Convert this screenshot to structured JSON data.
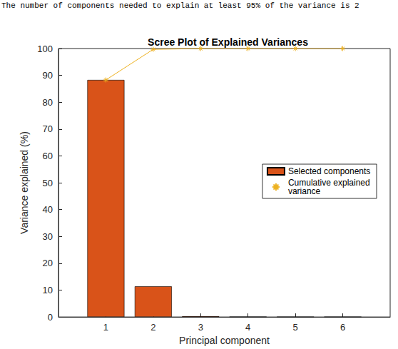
{
  "chart_data": {
    "type": "bar",
    "title": "Scree Plot of Explained Variances",
    "annotation": "The number of components needed to explain at least 95% of the variance is 2",
    "x_label": "Principal component",
    "y_label": "Variance explained (%)",
    "x": [
      1,
      2,
      3,
      4,
      5,
      6
    ],
    "series": [
      {
        "name": "Selected components",
        "type": "bar",
        "color": "#d95319",
        "values": [
          88.3,
          11.4,
          0.28,
          0.02,
          0,
          0
        ]
      },
      {
        "name": "Cumulative explained variance",
        "type": "line",
        "color": "#edb120",
        "marker": "star",
        "line_style": "solid",
        "values": [
          88.3,
          99.7,
          99.98,
          100,
          100,
          100
        ]
      }
    ],
    "xlim": [
      0,
      7
    ],
    "xticks": [
      1,
      2,
      3,
      4,
      5,
      6
    ],
    "ylim": [
      0,
      100
    ],
    "yticks": [
      0,
      10,
      20,
      30,
      40,
      50,
      60,
      70,
      80,
      90,
      100
    ],
    "grid": false,
    "legend": "right"
  }
}
